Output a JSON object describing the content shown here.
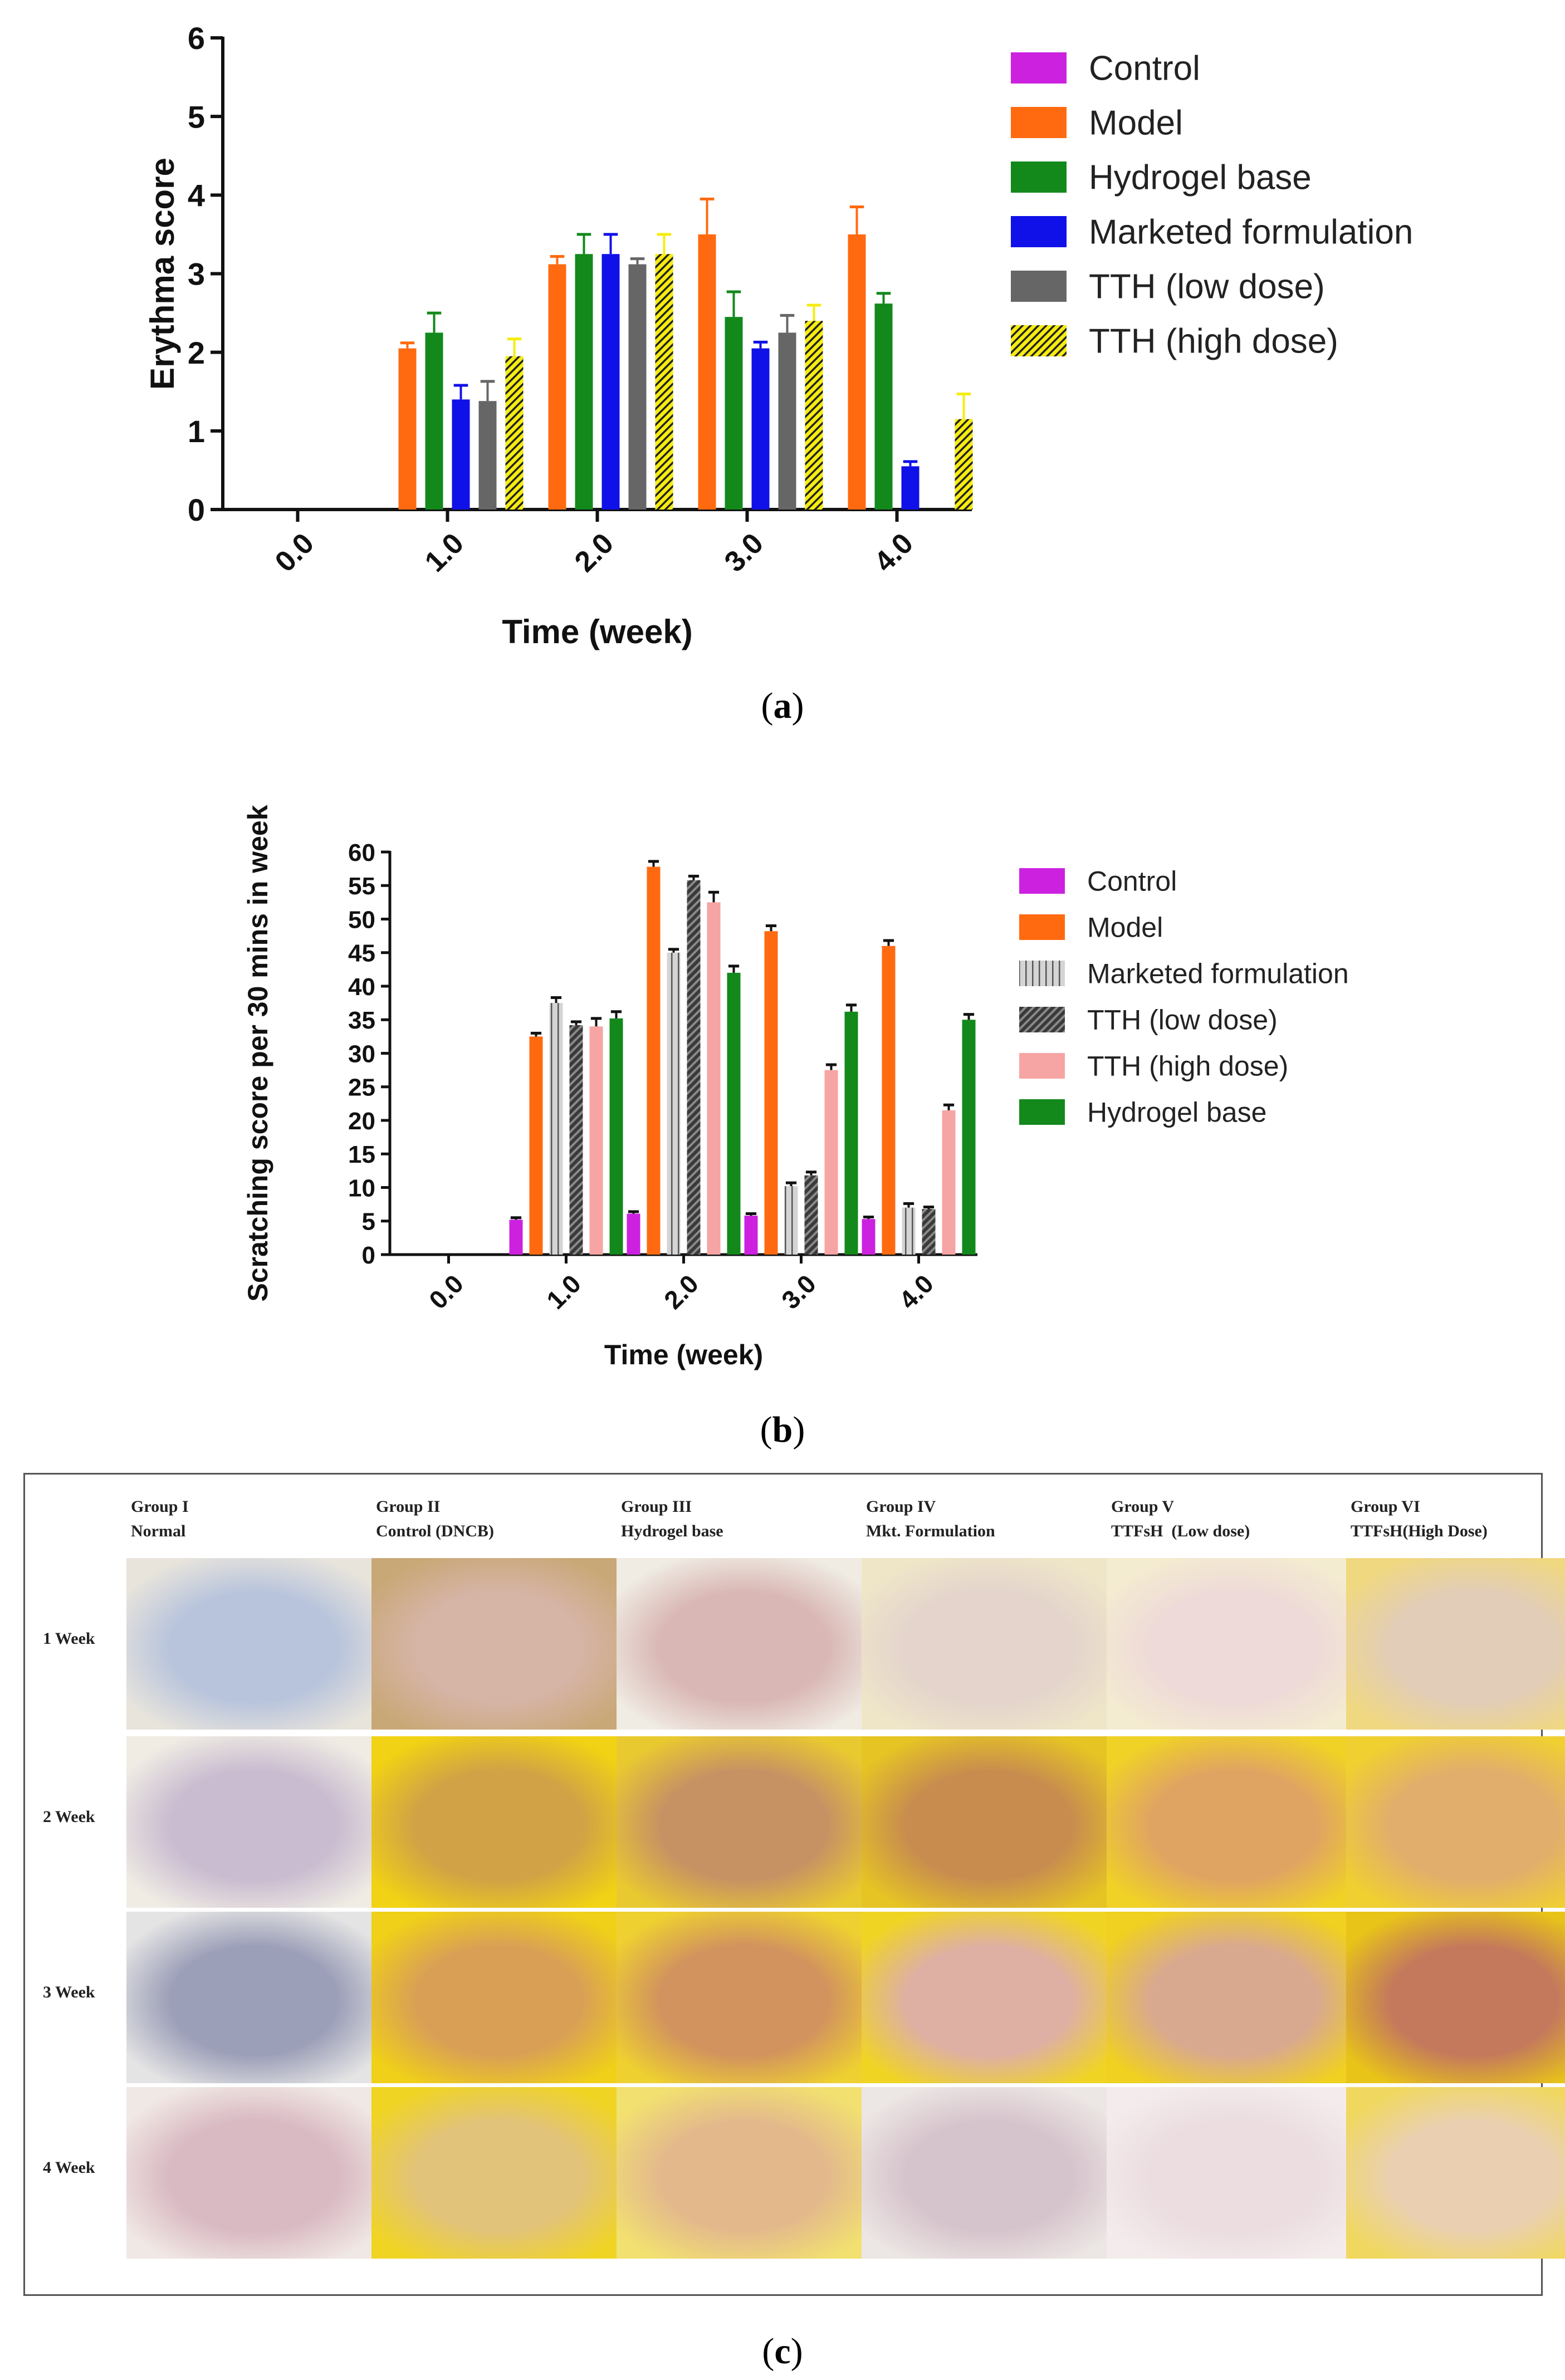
{
  "colors": {
    "Control": "#cc22e0",
    "Model": "#ff6a10",
    "Hydrogel base": "#13891c",
    "Marketed formulation": "#1010e8",
    "TTH (low dose)": "#666666",
    "TTH (high dose)": "#f6ec10",
    "Marketed formulation b": "#d4d4d4",
    "TTH (low dose) b": "#555555",
    "TTH (high dose) b": "#f7a4a4"
  },
  "chart_data": [
    {
      "type": "bar",
      "panel": "a",
      "title": "",
      "xlabel": "Time (week)",
      "ylabel": "Erythma score",
      "categories": [
        "0.0",
        "1.0",
        "2.0",
        "3.0",
        "4.0"
      ],
      "ylim": [
        0,
        6
      ],
      "yticks": [
        "0",
        "1",
        "2",
        "3",
        "4",
        "5",
        "6"
      ],
      "legend": [
        "Control",
        "Model",
        "Hydrogel base",
        "Marketed formulation",
        "TTH (low dose)",
        "TTH (high dose)"
      ],
      "legend_position": "right",
      "series": [
        {
          "name": "Control",
          "values": [
            0,
            0,
            0,
            0,
            0
          ],
          "errors": [
            0,
            0,
            0,
            0,
            0
          ]
        },
        {
          "name": "Model",
          "values": [
            0,
            2.05,
            3.12,
            3.5,
            3.5
          ],
          "errors": [
            0,
            0.07,
            0.1,
            0.45,
            0.35
          ]
        },
        {
          "name": "Hydrogel base",
          "values": [
            0,
            2.25,
            3.25,
            2.45,
            2.62
          ],
          "errors": [
            0,
            0.25,
            0.25,
            0.32,
            0.13
          ]
        },
        {
          "name": "Marketed formulation",
          "values": [
            0,
            1.4,
            3.25,
            2.05,
            0.55
          ],
          "errors": [
            0,
            0.18,
            0.25,
            0.08,
            0.06
          ]
        },
        {
          "name": "TTH (low dose)",
          "values": [
            0,
            1.38,
            3.12,
            2.25,
            0
          ],
          "errors": [
            0,
            0.25,
            0.07,
            0.22,
            0
          ]
        },
        {
          "name": "TTH (high dose)",
          "values": [
            0,
            1.95,
            3.25,
            2.4,
            1.15
          ],
          "errors": [
            0,
            0.22,
            0.25,
            0.2,
            0.32
          ]
        }
      ]
    },
    {
      "type": "bar",
      "panel": "b",
      "title": "",
      "xlabel": "Time (week)",
      "ylabel": "Scratching score per 30 mins in week",
      "categories": [
        "0.0",
        "1.0",
        "2.0",
        "3.0",
        "4.0"
      ],
      "ylim": [
        0,
        60
      ],
      "yticks": [
        "0",
        "5",
        "10",
        "15",
        "20",
        "25",
        "30",
        "35",
        "40",
        "45",
        "50",
        "55",
        "60"
      ],
      "legend": [
        "Control",
        "Model",
        "Marketed formulation",
        "TTH (low dose)",
        "TTH (high dose)",
        "Hydrogel base"
      ],
      "legend_position": "right",
      "series": [
        {
          "name": "Control",
          "values": [
            0,
            5.2,
            6.1,
            5.8,
            5.3
          ],
          "errors": [
            0,
            0.3,
            0.3,
            0.3,
            0.3
          ]
        },
        {
          "name": "Model",
          "values": [
            0,
            32.5,
            57.8,
            48.2,
            46
          ],
          "errors": [
            0,
            0.5,
            0.8,
            0.8,
            0.8
          ]
        },
        {
          "name": "Marketed formulation",
          "values": [
            0,
            37.5,
            45,
            10.2,
            7
          ],
          "errors": [
            0,
            0.8,
            0.5,
            0.5,
            0.6
          ]
        },
        {
          "name": "TTH (low dose)",
          "values": [
            0,
            34.2,
            55.8,
            11.8,
            6.8
          ],
          "errors": [
            0,
            0.5,
            0.6,
            0.5,
            0.3
          ]
        },
        {
          "name": "TTH (high dose)",
          "values": [
            0,
            34,
            52.5,
            27.5,
            21.5
          ],
          "errors": [
            0,
            1.2,
            1.5,
            0.8,
            0.8
          ]
        },
        {
          "name": "Hydrogel base",
          "values": [
            0,
            35.2,
            42,
            36.2,
            35
          ],
          "errors": [
            0,
            1,
            1,
            1,
            0.8
          ]
        }
      ]
    }
  ],
  "captions": {
    "a": "a",
    "b": "b",
    "c": "c"
  },
  "panel_c": {
    "groups": [
      {
        "line1": "Group I",
        "line2": "Normal"
      },
      {
        "line1": "Group II",
        "line2": "Control (DNCB)"
      },
      {
        "line1": "Group III",
        "line2": "Hydrogel base"
      },
      {
        "line1": "Group IV",
        "line2": "Mkt. Formulation"
      },
      {
        "line1": "Group V",
        "line2": "TTFsH  (Low dose)"
      },
      {
        "line1": "Group VI",
        "line2": "TTFsH(High Dose)"
      }
    ],
    "weeks": [
      "1 Week",
      "2 Week",
      "3 Week",
      "4 Week"
    ]
  }
}
